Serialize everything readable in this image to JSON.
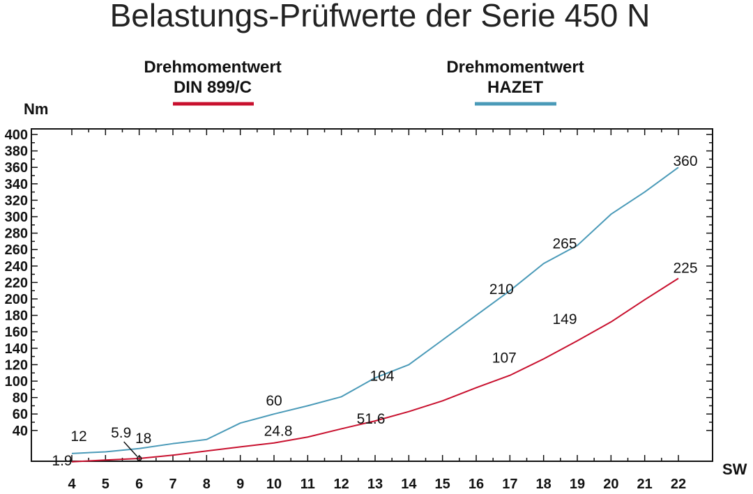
{
  "chart_data": {
    "type": "line",
    "title": "Belastungs-Prüfwerte der Serie 450 N",
    "xlabel": "SW",
    "ylabel": "Nm",
    "x": [
      4,
      5,
      6,
      7,
      8,
      9,
      10,
      11,
      12,
      13,
      14,
      15,
      16,
      17,
      18,
      19,
      20,
      21,
      22
    ],
    "ylim": [
      0,
      400
    ],
    "xlim": [
      4,
      22
    ],
    "yticks": [
      40,
      60,
      80,
      100,
      120,
      140,
      160,
      180,
      200,
      220,
      240,
      260,
      280,
      300,
      320,
      340,
      360,
      380,
      400
    ],
    "grid": false,
    "legend": "top",
    "series": [
      {
        "name": "Drehmomentwert DIN 899/C",
        "name_lines": [
          "Drehmomentwert",
          "DIN 899/C"
        ],
        "color": "#c8102e",
        "values": [
          1.9,
          4,
          5.9,
          10,
          15,
          20,
          24.8,
          32,
          42,
          51.6,
          63,
          76,
          92,
          107,
          127,
          149,
          172,
          199,
          225
        ]
      },
      {
        "name": "Drehmomentwert HAZET",
        "name_lines": [
          "Drehmomentwert",
          "HAZET"
        ],
        "color": "#4a9ab8",
        "values": [
          12,
          14,
          18,
          24,
          29,
          49,
          60,
          70,
          81,
          104,
          120,
          150,
          180,
          210,
          243,
          265,
          303,
          330,
          360
        ]
      }
    ],
    "annotations": [
      {
        "text": "1.9",
        "x": 4,
        "y": 1.9,
        "series": 0
      },
      {
        "text": "12",
        "x": 4,
        "y": 12,
        "series": 1
      },
      {
        "text": "5.9",
        "x": 6,
        "y": 5.9,
        "series": 0
      },
      {
        "text": "18",
        "x": 6,
        "y": 18,
        "series": 1
      },
      {
        "text": "60",
        "x": 10,
        "y": 60,
        "series": 1
      },
      {
        "text": "24.8",
        "x": 10,
        "y": 24.8,
        "series": 0
      },
      {
        "text": "104",
        "x": 13,
        "y": 104,
        "series": 1
      },
      {
        "text": "51.6",
        "x": 13,
        "y": 51.6,
        "series": 0
      },
      {
        "text": "210",
        "x": 17,
        "y": 210,
        "series": 1
      },
      {
        "text": "107",
        "x": 17,
        "y": 107,
        "series": 0
      },
      {
        "text": "265",
        "x": 19,
        "y": 265,
        "series": 1
      },
      {
        "text": "149",
        "x": 19,
        "y": 149,
        "series": 0
      },
      {
        "text": "360",
        "x": 22,
        "y": 360,
        "series": 1
      },
      {
        "text": "225",
        "x": 22,
        "y": 225,
        "series": 0
      }
    ]
  }
}
